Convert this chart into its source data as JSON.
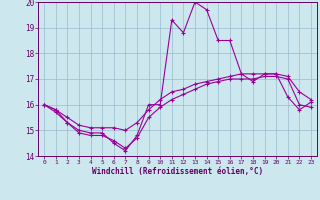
{
  "x": [
    0,
    1,
    2,
    3,
    4,
    5,
    6,
    7,
    8,
    9,
    10,
    11,
    12,
    13,
    14,
    15,
    16,
    17,
    18,
    19,
    20,
    21,
    22,
    23
  ],
  "line1": [
    16.0,
    15.8,
    15.3,
    15.0,
    14.9,
    14.9,
    14.5,
    14.2,
    14.8,
    16.0,
    16.0,
    19.3,
    18.8,
    20.0,
    19.7,
    18.5,
    18.5,
    17.2,
    16.9,
    17.2,
    17.2,
    16.3,
    15.8,
    16.1
  ],
  "line2": [
    16.0,
    15.8,
    15.5,
    15.2,
    15.1,
    15.1,
    15.1,
    15.0,
    15.3,
    15.8,
    16.2,
    16.5,
    16.6,
    16.8,
    16.9,
    17.0,
    17.1,
    17.2,
    17.2,
    17.2,
    17.2,
    17.1,
    16.5,
    16.2
  ],
  "line3": [
    16.0,
    15.7,
    15.3,
    14.9,
    14.8,
    14.8,
    14.6,
    14.3,
    14.7,
    15.5,
    15.9,
    16.2,
    16.4,
    16.6,
    16.8,
    16.9,
    17.0,
    17.0,
    17.0,
    17.1,
    17.1,
    17.0,
    16.0,
    15.9
  ],
  "ylim": [
    14,
    20
  ],
  "xlim_min": -0.5,
  "xlim_max": 23.5,
  "yticks": [
    14,
    15,
    16,
    17,
    18,
    19,
    20
  ],
  "xticks": [
    0,
    1,
    2,
    3,
    4,
    5,
    6,
    7,
    8,
    9,
    10,
    11,
    12,
    13,
    14,
    15,
    16,
    17,
    18,
    19,
    20,
    21,
    22,
    23
  ],
  "line_color": "#990099",
  "bg_color": "#cce8ee",
  "grid_color": "#99bbcc",
  "xlabel": "Windchill (Refroidissement éolien,°C)",
  "xlabel_color": "#660066",
  "tick_color": "#660066",
  "figsize": [
    3.2,
    2.0
  ],
  "dpi": 100
}
